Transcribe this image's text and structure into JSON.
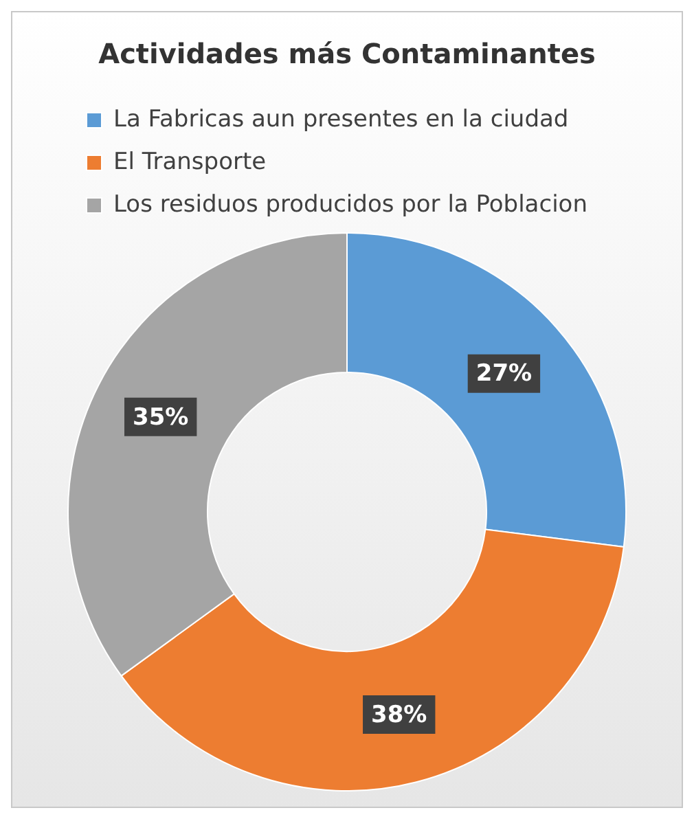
{
  "chart_data": {
    "type": "donut",
    "title": "Actividades más Contaminantes",
    "categories": [
      "La Fabricas aun presentes en la ciudad",
      "El Transporte",
      "Los residuos producidos por la Poblacion"
    ],
    "values": [
      27,
      38,
      35
    ],
    "colors": [
      "#5b9bd5",
      "#ed7d31",
      "#a5a5a5"
    ],
    "value_labels": [
      "27%",
      "38%",
      "35%"
    ],
    "legend": "top"
  }
}
